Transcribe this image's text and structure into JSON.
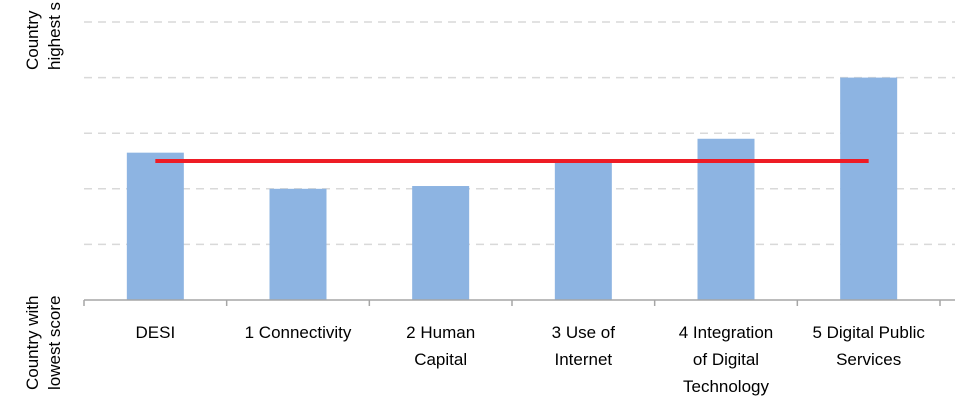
{
  "chart_data": {
    "type": "bar",
    "categories": [
      [
        "DESI"
      ],
      [
        "1 Connectivity"
      ],
      [
        "2 Human",
        "Capital"
      ],
      [
        "3 Use of",
        "Internet"
      ],
      [
        "4 Integration",
        "of Digital",
        "Technology"
      ],
      [
        "5 Digital Public",
        "Services"
      ]
    ],
    "values": [
      0.53,
      0.4,
      0.41,
      0.5,
      0.58,
      0.8
    ],
    "color": "#8db4e2",
    "reference_line": {
      "value": 0.5,
      "color": "#ee1c25"
    },
    "y_label_high": [
      "Country",
      "highest s"
    ],
    "y_label_low": [
      "Country with",
      "lowest score"
    ],
    "ylim": [
      0,
      1
    ],
    "yticks": [
      0,
      0.2,
      0.4,
      0.6,
      0.8,
      1
    ],
    "grid": true
  }
}
